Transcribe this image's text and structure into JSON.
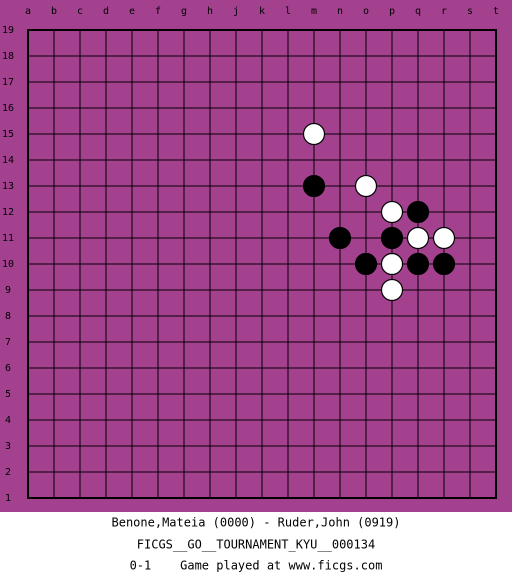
{
  "board": {
    "columns": [
      "a",
      "b",
      "c",
      "d",
      "e",
      "f",
      "g",
      "h",
      "j",
      "k",
      "l",
      "m",
      "n",
      "o",
      "p",
      "q",
      "r",
      "s",
      "t"
    ],
    "rows": [
      19,
      18,
      17,
      16,
      15,
      14,
      13,
      12,
      11,
      10,
      9,
      8,
      7,
      6,
      5,
      4,
      3,
      2,
      1
    ],
    "stones": [
      {
        "color": "white",
        "col": "m",
        "row": 15
      },
      {
        "color": "black",
        "col": "m",
        "row": 13
      },
      {
        "color": "white",
        "col": "o",
        "row": 13
      },
      {
        "color": "white",
        "col": "p",
        "row": 12
      },
      {
        "color": "black",
        "col": "q",
        "row": 12
      },
      {
        "color": "black",
        "col": "n",
        "row": 11
      },
      {
        "color": "black",
        "col": "p",
        "row": 11
      },
      {
        "color": "white",
        "col": "q",
        "row": 11
      },
      {
        "color": "white",
        "col": "r",
        "row": 11
      },
      {
        "color": "black",
        "col": "o",
        "row": 10
      },
      {
        "color": "white",
        "col": "p",
        "row": 10
      },
      {
        "color": "black",
        "col": "q",
        "row": 10
      },
      {
        "color": "black",
        "col": "r",
        "row": 10
      },
      {
        "color": "white",
        "col": "p",
        "row": 9
      }
    ]
  },
  "footer": {
    "players": "Benone,Mateia (0000) - Ruder,John (0919)",
    "event": "FICGS__GO__TOURNAMENT_KYU__000134",
    "result": "0-1    Game played at www.ficgs.com"
  }
}
